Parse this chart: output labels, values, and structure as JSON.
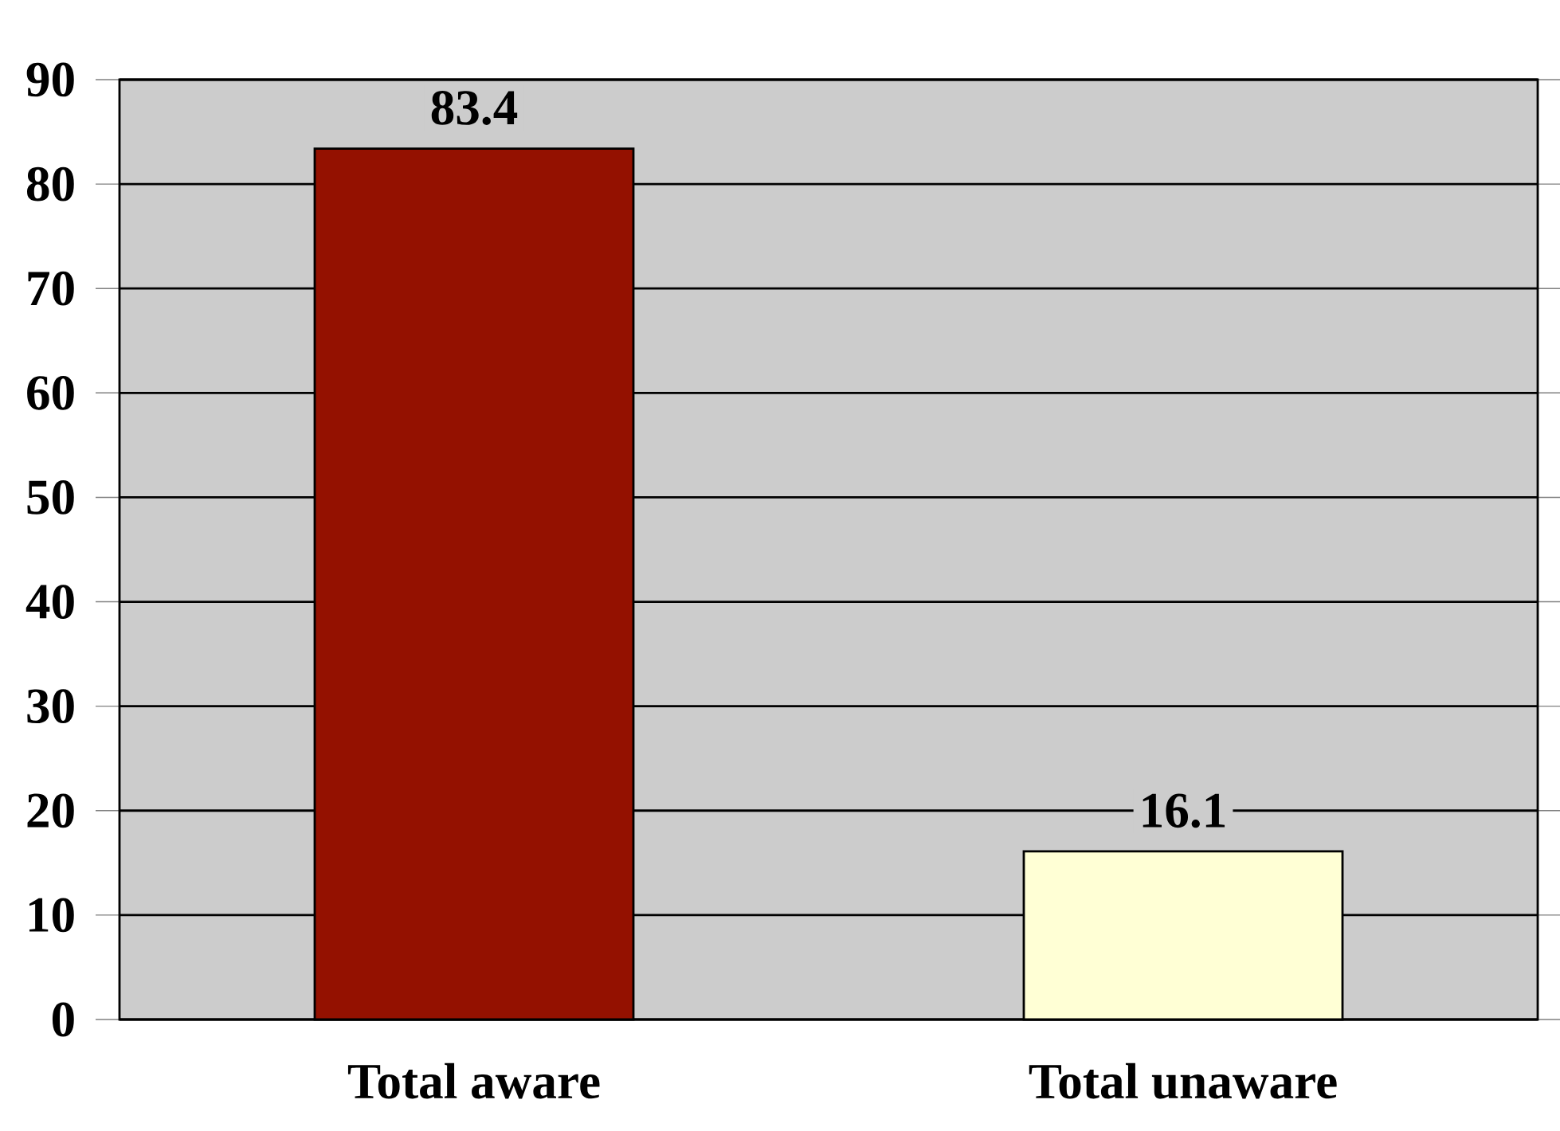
{
  "chart_data": {
    "type": "bar",
    "categories": [
      "Total aware",
      "Total unaware"
    ],
    "values": [
      83.4,
      16.1
    ],
    "colors": [
      "#941100",
      "#ffffd5"
    ],
    "ylim": [
      0,
      90
    ],
    "yticks": [
      0,
      10,
      20,
      30,
      40,
      50,
      60,
      70,
      80,
      90
    ],
    "grid": "y",
    "data_labels": true
  }
}
